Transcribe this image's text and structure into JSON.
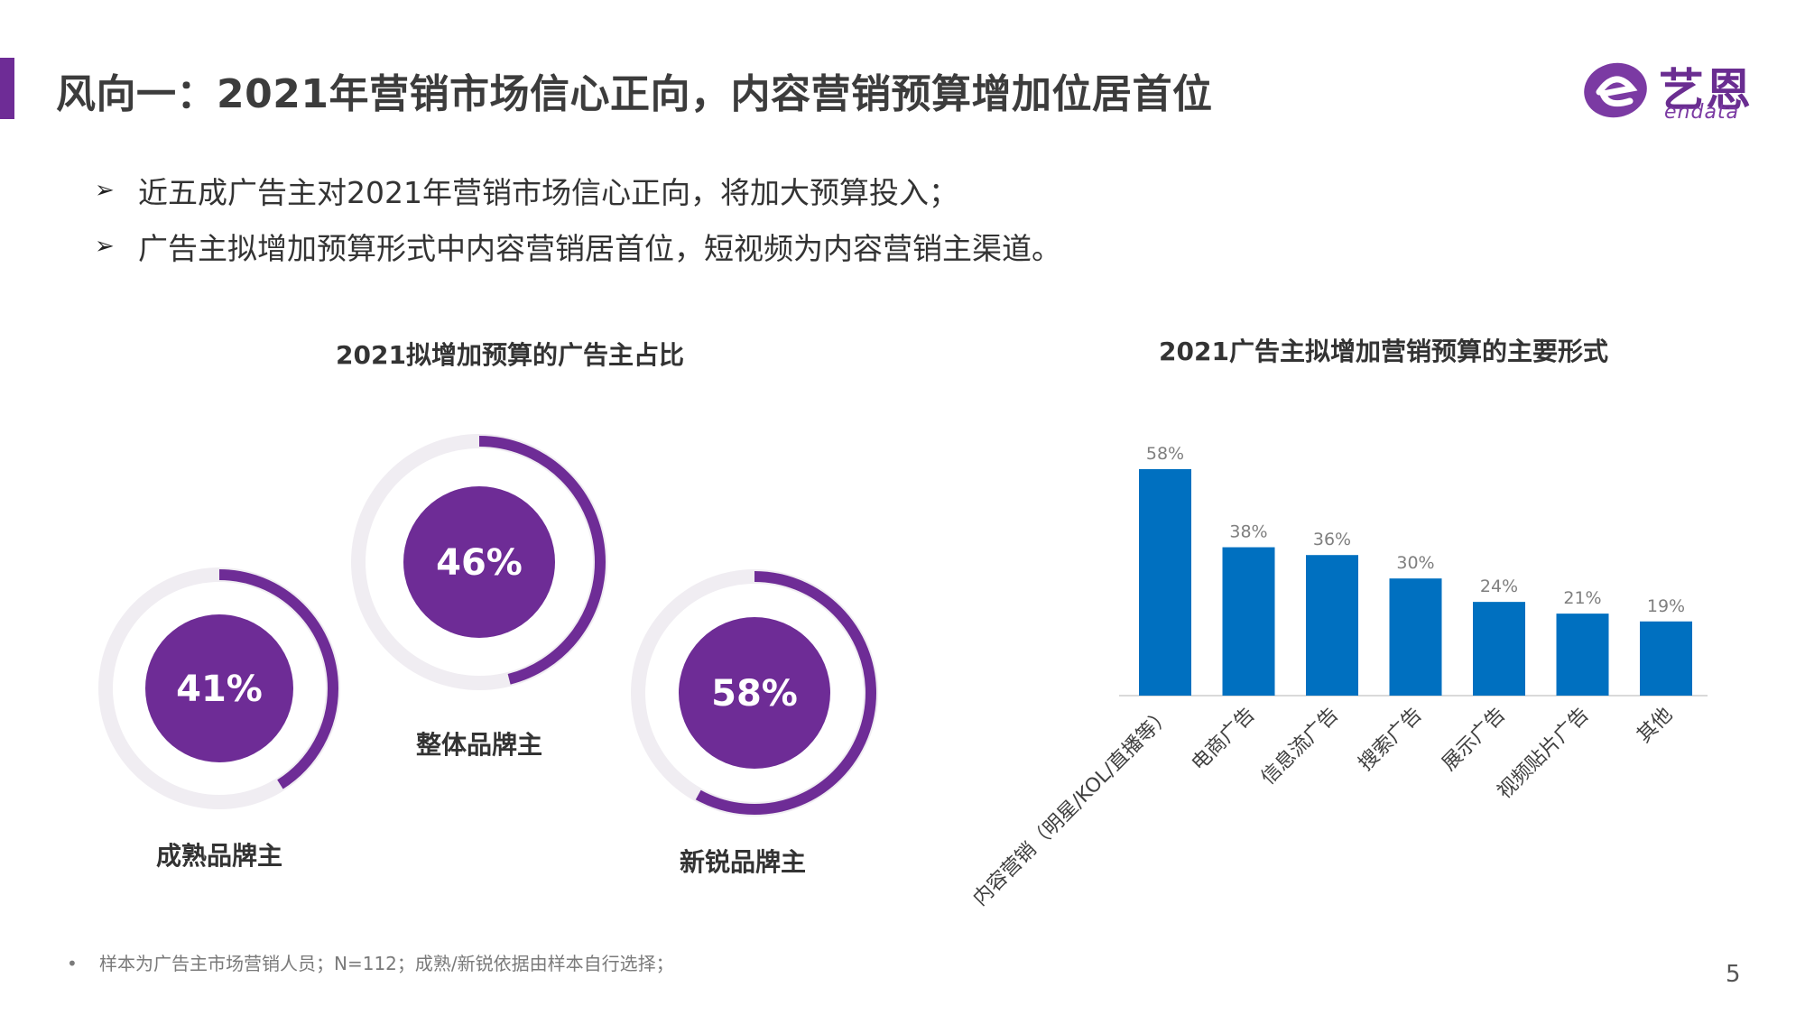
{
  "header": {
    "title": "风向一：2021年营销市场信心正向，内容营销预算增加位居首位",
    "accent_color": "#6e2c96"
  },
  "logo": {
    "cn": "艺恩",
    "en": "endata"
  },
  "bullets": [
    {
      "icon": "arrow-bullet-icon",
      "text": "近五成广告主对2021年营销市场信心正向，将加大预算投入；"
    },
    {
      "icon": "arrow-bullet-icon",
      "text": "广告主拟增加预算形式中内容营销居首位，短视频为内容营销主渠道。"
    }
  ],
  "chart_data": [
    {
      "type": "pie",
      "style": "radial-progress",
      "title": "2021拟增加预算的广告主占比",
      "categories": [
        "成熟品牌主",
        "整体品牌主",
        "新锐品牌主"
      ],
      "values": [
        41,
        46,
        58
      ],
      "value_labels": [
        "41%",
        "46%",
        "58%"
      ],
      "unit": "%",
      "colors": {
        "fill": "#6e2c96",
        "track": "#f0edf2"
      }
    },
    {
      "type": "bar",
      "title": "2021广告主拟增加营销预算的主要形式",
      "categories": [
        "内容营销（明星/KOL/直播等）",
        "电商广告",
        "信息流广告",
        "搜索广告",
        "展示广告",
        "视频贴片广告",
        "其他"
      ],
      "values": [
        58,
        38,
        36,
        30,
        24,
        21,
        19
      ],
      "value_labels": [
        "58%",
        "38%",
        "36%",
        "30%",
        "24%",
        "21%",
        "19%"
      ],
      "unit": "%",
      "ylim": [
        0,
        60
      ],
      "grid": false,
      "legend": "none",
      "colors": {
        "bar": "#0070c0",
        "label": "#7f7f7f"
      }
    }
  ],
  "footnote": "样本为广告主市场营销人员；N=112；成熟/新锐依据由样本自行选择；",
  "page_number": "5"
}
